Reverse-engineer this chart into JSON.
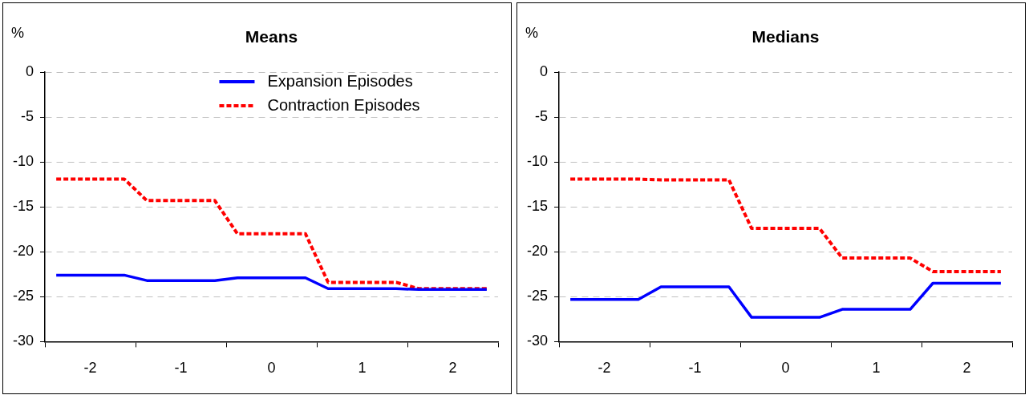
{
  "chart_data": [
    {
      "type": "line",
      "title": "Means",
      "ylabel": "%",
      "x": [
        -2.375,
        -1.625,
        -1.375,
        -0.625,
        -0.375,
        0.375,
        0.625,
        1.375,
        1.625,
        2.375
      ],
      "xlim": [
        -2.5,
        2.5
      ],
      "xticks": [
        {
          "value": -2.5,
          "label": null
        },
        -2,
        {
          "value": -1.5,
          "label": null
        },
        -1,
        {
          "value": -0.5,
          "label": null
        },
        0,
        {
          "value": 0.5,
          "label": null
        },
        1,
        {
          "value": 1.5,
          "label": null
        },
        2,
        {
          "value": 2.5,
          "label": null
        }
      ],
      "ylim": [
        -30,
        0
      ],
      "yticks": [
        -30,
        -25,
        -20,
        -15,
        -10,
        -5,
        0
      ],
      "grid": "y",
      "legend": "top",
      "marker": "none",
      "series": [
        {
          "name": "Expansion Episodes",
          "color": "#0000ff",
          "line_style": "solid",
          "values": [
            -22.6,
            -22.6,
            -23.2,
            -23.2,
            -22.9,
            -22.9,
            -24.1,
            -24.1,
            -24.2,
            -24.2
          ]
        },
        {
          "name": "Contraction Episodes",
          "color": "#ff0000",
          "line_style": "dotted",
          "values": [
            -11.9,
            -11.9,
            -14.3,
            -14.3,
            -18.0,
            -18.0,
            -23.4,
            -23.4,
            -24.1,
            -24.1
          ]
        }
      ]
    },
    {
      "type": "line",
      "title": "Medians",
      "ylabel": "%",
      "x": [
        -2.375,
        -1.625,
        -1.375,
        -0.625,
        -0.375,
        0.375,
        0.625,
        1.375,
        1.625,
        2.375
      ],
      "xlim": [
        -2.5,
        2.5
      ],
      "xticks": [
        {
          "value": -2.5,
          "label": null
        },
        -2,
        {
          "value": -1.5,
          "label": null
        },
        -1,
        {
          "value": -0.5,
          "label": null
        },
        0,
        {
          "value": 0.5,
          "label": null
        },
        1,
        {
          "value": 1.5,
          "label": null
        },
        2,
        {
          "value": 2.5,
          "label": null
        }
      ],
      "ylim": [
        -30,
        0
      ],
      "yticks": [
        -30,
        -25,
        -20,
        -15,
        -10,
        -5,
        0
      ],
      "grid": "y",
      "marker": "none",
      "series": [
        {
          "color": "#0000ff",
          "line_style": "solid",
          "values": [
            -25.3,
            -25.3,
            -23.9,
            -23.9,
            -27.3,
            -27.3,
            -26.4,
            -26.4,
            -23.5,
            -23.5
          ]
        },
        {
          "color": "#ff0000",
          "line_style": "dotted",
          "values": [
            -11.9,
            -11.9,
            -12.0,
            -12.0,
            -17.4,
            -17.4,
            -20.7,
            -20.7,
            -22.2,
            -22.2
          ]
        }
      ]
    }
  ]
}
